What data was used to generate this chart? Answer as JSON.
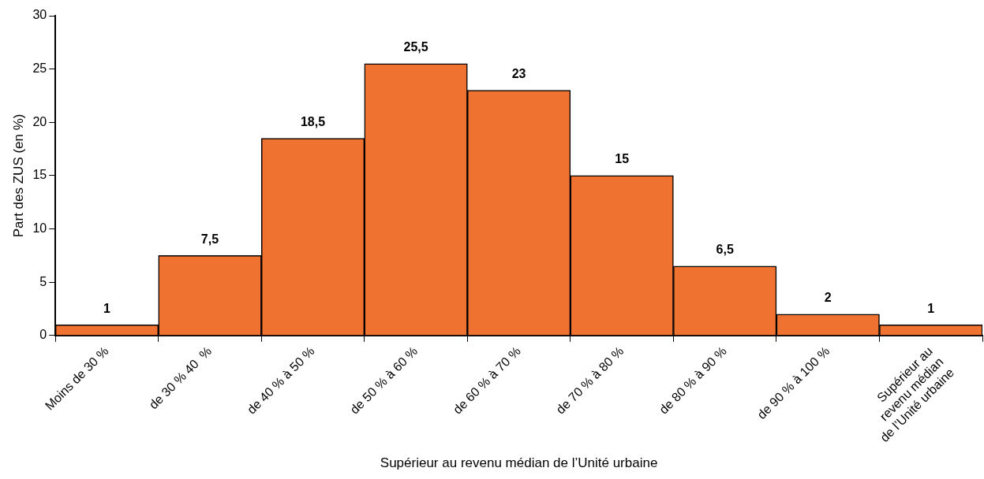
{
  "chart_data": {
    "type": "bar",
    "xlabel": "Supérieur au revenu médian de l’Unité urbaine",
    "ylabel": "Part des ZUS (en %)",
    "categories": [
      "Moins de 30 %",
      "de 30 % 40  %",
      "de 40 % à 50 %",
      "de 50 % à 60 %",
      "de 60 % à 70 %",
      "de 70 % à 80 %",
      "de 80 % à 90 %",
      "de 90 % à 100 %",
      "Supérieur au\nrevenu médian\nde l’Unité urbaine"
    ],
    "values": [
      1,
      7.5,
      18.5,
      25.5,
      23,
      15,
      6.5,
      2,
      1
    ],
    "color": "#f07230",
    "ylim": [
      0,
      30
    ],
    "yticks": [
      0,
      5,
      10,
      15,
      20,
      25,
      30
    ],
    "value_labels": [
      "1",
      "7,5",
      "18,5",
      "25,5",
      "23",
      "15",
      "6,5",
      "2",
      "1"
    ],
    "grid": false,
    "legend": false
  }
}
